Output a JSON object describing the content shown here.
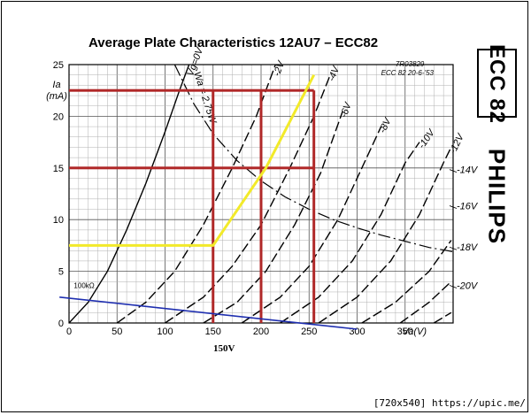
{
  "chart_data": {
    "type": "line",
    "title": "Average Plate Characteristics 12AU7 – ECC82",
    "xlabel": "Va(V)",
    "ylabel": "Ia (mA)",
    "xlim": [
      0,
      400
    ],
    "ylim": [
      0,
      25
    ],
    "x_ticks": [
      "0",
      "50",
      "100",
      "150",
      "200",
      "250",
      "300",
      "350"
    ],
    "y_ticks": [
      "0",
      "5",
      "10",
      "15",
      "20",
      "25"
    ],
    "grid": true,
    "drawing_ref": "7R03829",
    "drawing_date": "ECC 82 20-6-'53",
    "series": [
      {
        "name": "Vg=0V",
        "points": [
          [
            0,
            0
          ],
          [
            20,
            2
          ],
          [
            40,
            5
          ],
          [
            60,
            9
          ],
          [
            80,
            13.5
          ],
          [
            100,
            18.5
          ],
          [
            115,
            22.5
          ],
          [
            125,
            25
          ]
        ]
      },
      {
        "name": "-2V",
        "points": [
          [
            50,
            0
          ],
          [
            80,
            2
          ],
          [
            110,
            5
          ],
          [
            140,
            9.5
          ],
          [
            170,
            15
          ],
          [
            195,
            20
          ],
          [
            215,
            25
          ]
        ]
      },
      {
        "name": "-4V",
        "points": [
          [
            100,
            0
          ],
          [
            140,
            2.5
          ],
          [
            170,
            5.5
          ],
          [
            200,
            9.5
          ],
          [
            230,
            15
          ],
          [
            255,
            20
          ],
          [
            272,
            24
          ]
        ]
      },
      {
        "name": "-6V",
        "points": [
          [
            140,
            0
          ],
          [
            175,
            2
          ],
          [
            205,
            5
          ],
          [
            235,
            9.5
          ],
          [
            262,
            14.5
          ],
          [
            285,
            20.5
          ]
        ]
      },
      {
        "name": "-8V",
        "points": [
          [
            180,
            0
          ],
          [
            220,
            2.5
          ],
          [
            250,
            5.5
          ],
          [
            280,
            10
          ],
          [
            305,
            15
          ],
          [
            325,
            19
          ]
        ]
      },
      {
        "name": "-10V",
        "points": [
          [
            220,
            0
          ],
          [
            260,
            2.5
          ],
          [
            295,
            6
          ],
          [
            325,
            10.5
          ],
          [
            350,
            15.5
          ],
          [
            365,
            17.5
          ]
        ]
      },
      {
        "name": "-12V",
        "points": [
          [
            260,
            0
          ],
          [
            300,
            2.5
          ],
          [
            335,
            6
          ],
          [
            365,
            10.5
          ],
          [
            390,
            15.5
          ],
          [
            398,
            17
          ]
        ]
      },
      {
        "name": "-14V",
        "points": [
          [
            305,
            0
          ],
          [
            340,
            2
          ],
          [
            375,
            5
          ],
          [
            398,
            8
          ]
        ]
      },
      {
        "name": "-16V",
        "points": [
          [
            345,
            0
          ],
          [
            375,
            2
          ],
          [
            398,
            4
          ]
        ]
      },
      {
        "name": "-18V",
        "points": [
          [
            380,
            0
          ],
          [
            398,
            1
          ]
        ]
      }
    ],
    "outside_labels": [
      "-14V",
      "-16V",
      "-18V",
      "-20V"
    ],
    "dissipation_curve": {
      "name": "Wa = 2.75W",
      "points": [
        [
          110,
          25
        ],
        [
          130,
          21.2
        ],
        [
          150,
          18.3
        ],
        [
          175,
          15.7
        ],
        [
          200,
          13.75
        ],
        [
          225,
          12.2
        ],
        [
          250,
          11
        ],
        [
          275,
          10
        ],
        [
          300,
          9.2
        ],
        [
          325,
          8.5
        ],
        [
          350,
          7.9
        ],
        [
          375,
          7.3
        ],
        [
          400,
          6.9
        ]
      ]
    },
    "load_line": {
      "label": "100kΩ",
      "points": [
        [
          -10,
          2.5
        ],
        [
          300,
          -0.6
        ]
      ],
      "color": "#1f2fb0"
    },
    "yellow_line": {
      "points": [
        [
          0,
          7.5
        ],
        [
          150,
          7.5
        ],
        [
          205,
          15
        ],
        [
          255,
          24
        ]
      ],
      "color": "#f2ea2a"
    },
    "red_horizontals": [
      15,
      22.5
    ],
    "red_verticals": [
      150,
      200,
      255
    ],
    "red_color": "#b02828",
    "operating_point_label": "150V",
    "tube_label": "ECC 82",
    "brand": "PHILIPS"
  },
  "footer": "[720x540] https://upic.me/"
}
